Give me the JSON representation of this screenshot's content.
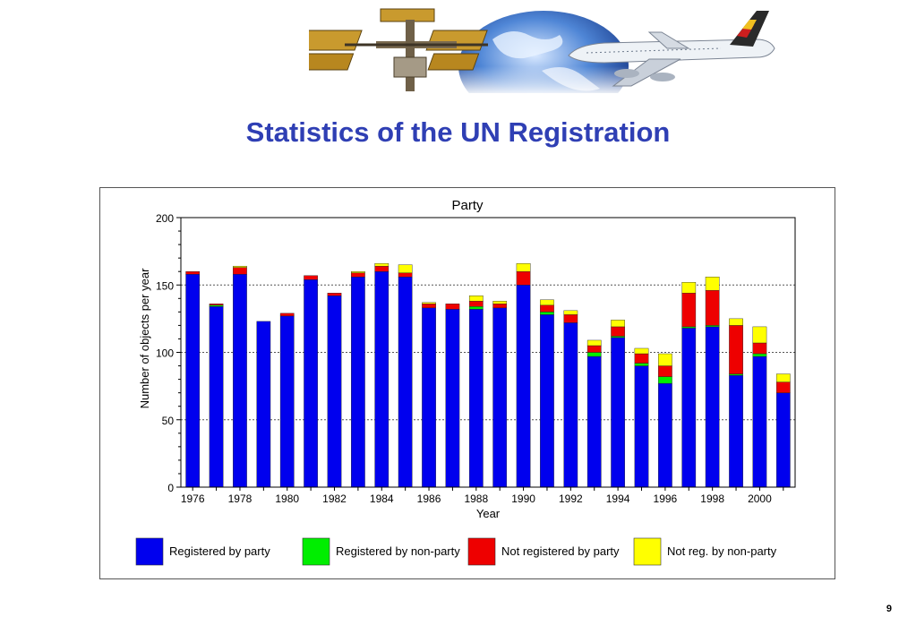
{
  "slide": {
    "title": "Statistics of the UN Registration",
    "page_number": "9",
    "banner_icons": [
      "space-station-icon",
      "globe-icon",
      "airliner-icon"
    ]
  },
  "chart_data": {
    "type": "bar",
    "stacked": true,
    "title": "Party",
    "xlabel": "Year",
    "ylabel": "Number of objects per year",
    "ylim": [
      0,
      200
    ],
    "yticks": [
      0,
      50,
      100,
      150,
      200
    ],
    "grid": "horizontal-dotted",
    "legend_position": "bottom",
    "x": [
      1976,
      1977,
      1978,
      1979,
      1980,
      1981,
      1982,
      1983,
      1984,
      1985,
      1986,
      1987,
      1988,
      1989,
      1990,
      1991,
      1992,
      1993,
      1994,
      1995,
      1996,
      1997,
      1998,
      1999,
      2000,
      2001
    ],
    "x_tick_labels": [
      "1976",
      "1978",
      "1980",
      "1982",
      "1984",
      "1986",
      "1988",
      "1990",
      "1992",
      "1994",
      "1996",
      "1998",
      "2000"
    ],
    "series": [
      {
        "name": "Registered by party",
        "color": "#0000ee",
        "values": [
          158,
          134,
          158,
          123,
          127,
          154,
          142,
          156,
          160,
          156,
          133,
          132,
          132,
          133,
          150,
          128,
          122,
          97,
          111,
          90,
          77,
          118,
          119,
          83,
          97,
          70
        ]
      },
      {
        "name": "Registered by non-party",
        "color": "#00ee00",
        "values": [
          0,
          1,
          0,
          0,
          0,
          0,
          0,
          0,
          0,
          0,
          0,
          0,
          2,
          0,
          0,
          2,
          0,
          3,
          1,
          2,
          5,
          1,
          1,
          1,
          2,
          0
        ]
      },
      {
        "name": "Not registered by party",
        "color": "#ee0000",
        "values": [
          2,
          1,
          5,
          0,
          2,
          3,
          2,
          3,
          4,
          3,
          3,
          4,
          4,
          3,
          10,
          5,
          6,
          5,
          7,
          7,
          8,
          25,
          26,
          36,
          8,
          8
        ]
      },
      {
        "name": "Not reg. by non-party",
        "color": "#ffff00",
        "values": [
          0,
          0,
          1,
          0,
          0,
          0,
          0,
          1,
          2,
          6,
          1,
          0,
          4,
          2,
          6,
          4,
          3,
          4,
          5,
          4,
          9,
          8,
          10,
          5,
          12,
          6
        ]
      }
    ]
  }
}
